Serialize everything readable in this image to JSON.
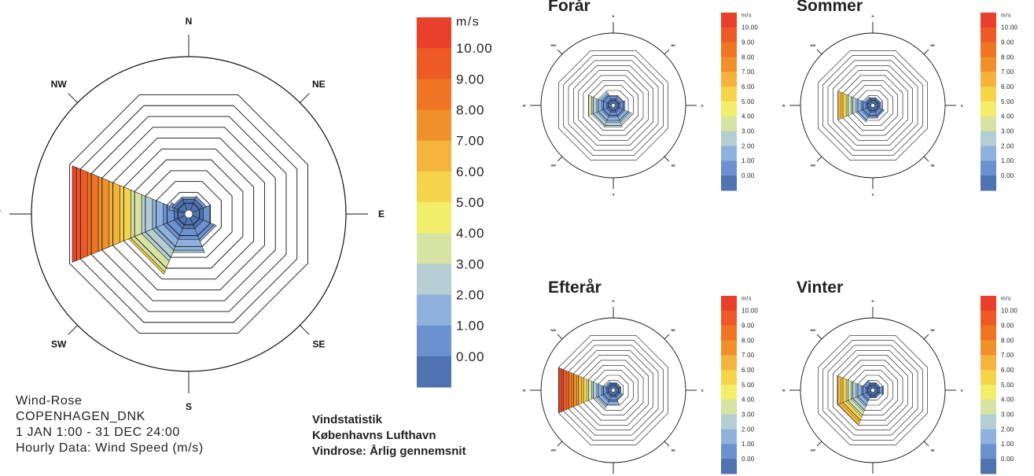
{
  "info": {
    "line1": "Wind-Rose",
    "line2": "COPENHAGEN_DNK",
    "line3": "1 JAN 1:00 - 31 DEC 24:00",
    "line4": "Hourly Data: Wind Speed (m/s)"
  },
  "statistics": {
    "line1": "Vindstatistik",
    "line2": "Københavns Lufthavn",
    "line3": "Vindrose: Årlig gennemsnit"
  },
  "legend": {
    "unit": "m/s",
    "labels": [
      "10.00",
      "9.00",
      "8.00",
      "7.00",
      "6.00",
      "5.00",
      "4.00",
      "3.00",
      "2.00",
      "1.00",
      "0.00"
    ],
    "colors": [
      "#e8402a",
      "#ee5a25",
      "#ef7424",
      "#f0902a",
      "#f4b33d",
      "#f5d34a",
      "#f3ee6a",
      "#d6e3a2",
      "#b4ced3",
      "#8fb2dd",
      "#6b91cf",
      "#4f72b0"
    ]
  },
  "chart_data": [
    {
      "type": "windrose",
      "title": "",
      "directions": [
        "N",
        "NE",
        "E",
        "SE",
        "S",
        "SW",
        "W",
        "NW"
      ],
      "ring_count": 11,
      "unit": "m/s",
      "petals": [
        {
          "direction_deg": 270,
          "width_deg": 45,
          "extent_rings": 10.4
        },
        {
          "direction_deg": 292.5,
          "width_deg": 22.5,
          "extent_rings": 1.4
        },
        {
          "direction_deg": 225,
          "width_deg": 45,
          "extent_rings": 5.2
        },
        {
          "direction_deg": 180,
          "width_deg": 45,
          "extent_rings": 3.2
        },
        {
          "direction_deg": 135,
          "width_deg": 45,
          "extent_rings": 2.2
        },
        {
          "direction_deg": 90,
          "width_deg": 45,
          "extent_rings": 1.6
        },
        {
          "direction_deg": 45,
          "width_deg": 45,
          "extent_rings": 1.3
        },
        {
          "direction_deg": 0,
          "width_deg": 45,
          "extent_rings": 1.2
        },
        {
          "direction_deg": 315,
          "width_deg": 45,
          "extent_rings": 1.2
        }
      ]
    },
    {
      "type": "windrose",
      "title": "Forår",
      "directions": [
        "N",
        "NE",
        "E",
        "SE",
        "S",
        "SW",
        "W",
        "NW"
      ],
      "ring_count": 11,
      "unit": "m/s",
      "petals": [
        {
          "direction_deg": 270,
          "width_deg": 45,
          "extent_rings": 4.6
        },
        {
          "direction_deg": 225,
          "width_deg": 45,
          "extent_rings": 4.0
        },
        {
          "direction_deg": 180,
          "width_deg": 45,
          "extent_rings": 4.0
        },
        {
          "direction_deg": 135,
          "width_deg": 45,
          "extent_rings": 3.4
        },
        {
          "direction_deg": 90,
          "width_deg": 45,
          "extent_rings": 2.0
        },
        {
          "direction_deg": 45,
          "width_deg": 45,
          "extent_rings": 1.6
        },
        {
          "direction_deg": 0,
          "width_deg": 45,
          "extent_rings": 1.5
        },
        {
          "direction_deg": 315,
          "width_deg": 45,
          "extent_rings": 2.4
        }
      ]
    },
    {
      "type": "windrose",
      "title": "Sommer",
      "directions": [
        "N",
        "NE",
        "E",
        "SE",
        "S",
        "SW",
        "W",
        "NW"
      ],
      "ring_count": 11,
      "unit": "m/s",
      "petals": [
        {
          "direction_deg": 270,
          "width_deg": 45,
          "extent_rings": 6.6
        },
        {
          "direction_deg": 225,
          "width_deg": 45,
          "extent_rings": 3.0
        },
        {
          "direction_deg": 180,
          "width_deg": 45,
          "extent_rings": 2.2
        },
        {
          "direction_deg": 135,
          "width_deg": 45,
          "extent_rings": 2.0
        },
        {
          "direction_deg": 90,
          "width_deg": 45,
          "extent_rings": 1.4
        },
        {
          "direction_deg": 45,
          "width_deg": 45,
          "extent_rings": 1.2
        },
        {
          "direction_deg": 0,
          "width_deg": 45,
          "extent_rings": 1.2
        },
        {
          "direction_deg": 315,
          "width_deg": 45,
          "extent_rings": 1.4
        }
      ]
    },
    {
      "type": "windrose",
      "title": "Efterår",
      "directions": [
        "N",
        "NE",
        "E",
        "SE",
        "S",
        "SW",
        "W",
        "NW"
      ],
      "ring_count": 11,
      "unit": "m/s",
      "petals": [
        {
          "direction_deg": 270,
          "width_deg": 45,
          "extent_rings": 10.6
        },
        {
          "direction_deg": 225,
          "width_deg": 45,
          "extent_rings": 3.4
        },
        {
          "direction_deg": 180,
          "width_deg": 45,
          "extent_rings": 2.6
        },
        {
          "direction_deg": 135,
          "width_deg": 45,
          "extent_rings": 1.6
        },
        {
          "direction_deg": 90,
          "width_deg": 45,
          "extent_rings": 1.2
        },
        {
          "direction_deg": 45,
          "width_deg": 45,
          "extent_rings": 1.2
        },
        {
          "direction_deg": 0,
          "width_deg": 45,
          "extent_rings": 1.2
        },
        {
          "direction_deg": 315,
          "width_deg": 45,
          "extent_rings": 1.4
        }
      ]
    },
    {
      "type": "windrose",
      "title": "Vinter",
      "directions": [
        "N",
        "NE",
        "E",
        "SE",
        "S",
        "SW",
        "W",
        "NW"
      ],
      "ring_count": 11,
      "unit": "m/s",
      "petals": [
        {
          "direction_deg": 270,
          "width_deg": 45,
          "extent_rings": 6.8
        },
        {
          "direction_deg": 225,
          "width_deg": 45,
          "extent_rings": 6.6
        },
        {
          "direction_deg": 180,
          "width_deg": 45,
          "extent_rings": 1.2
        },
        {
          "direction_deg": 135,
          "width_deg": 45,
          "extent_rings": 1.2
        },
        {
          "direction_deg": 90,
          "width_deg": 45,
          "extent_rings": 1.8
        },
        {
          "direction_deg": 45,
          "width_deg": 45,
          "extent_rings": 1.2
        },
        {
          "direction_deg": 0,
          "width_deg": 45,
          "extent_rings": 1.2
        },
        {
          "direction_deg": 315,
          "width_deg": 45,
          "extent_rings": 1.6
        }
      ]
    }
  ]
}
